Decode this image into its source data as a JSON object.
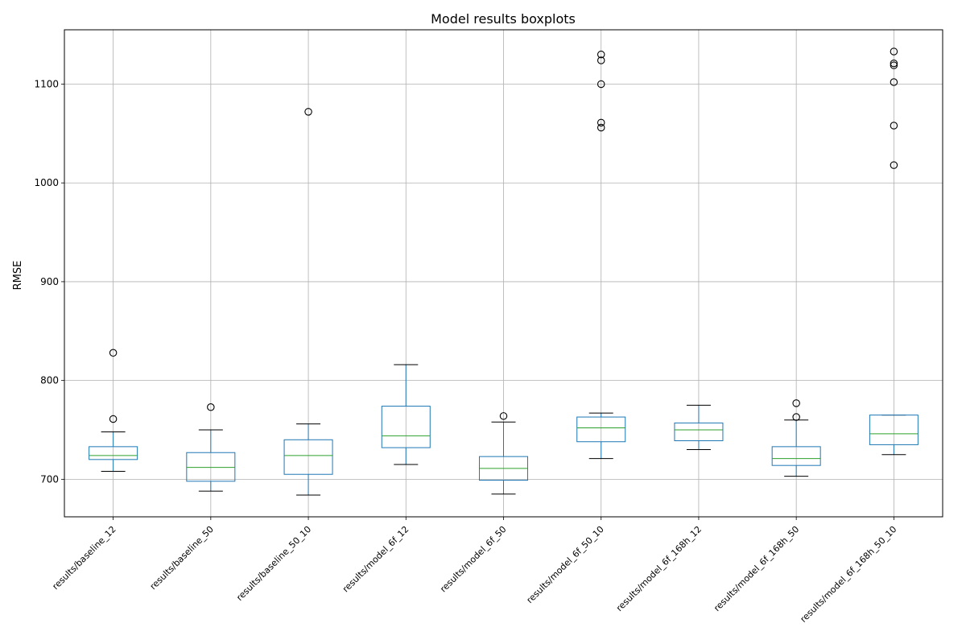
{
  "chart_data": {
    "type": "boxplot",
    "title": "Model results boxplots",
    "ylabel": "RMSE",
    "xlabel": "",
    "ylim": [
      662,
      1155
    ],
    "yticks": [
      700,
      800,
      900,
      1000,
      1100
    ],
    "grid": true,
    "colors": {
      "box": "#1f77b4",
      "median": "#2ca02c",
      "whisker_cap": "#000000",
      "grid": "#b0b0b0",
      "flier": "#000000"
    },
    "categories": [
      "results/baseline_12",
      "results/baseline_50",
      "results/baseline_50_10",
      "results/model_6f_12",
      "results/model_6f_50",
      "results/model_6f_50_10",
      "results/model_6f_168h_12",
      "results/model_6f_168h_50",
      "results/model_6f_168h_50_10"
    ],
    "boxes": [
      {
        "whisker_low": 708,
        "q1": 720,
        "median": 724,
        "q3": 733,
        "whisker_high": 748,
        "fliers": [
          761,
          828
        ]
      },
      {
        "whisker_low": 688,
        "q1": 698,
        "median": 712,
        "q3": 727,
        "whisker_high": 750,
        "fliers": [
          773
        ]
      },
      {
        "whisker_low": 684,
        "q1": 705,
        "median": 724,
        "q3": 740,
        "whisker_high": 756,
        "fliers": [
          1072
        ]
      },
      {
        "whisker_low": 715,
        "q1": 732,
        "median": 744,
        "q3": 774,
        "whisker_high": 816,
        "fliers": []
      },
      {
        "whisker_low": 685,
        "q1": 699,
        "median": 711,
        "q3": 723,
        "whisker_high": 758,
        "fliers": [
          764
        ]
      },
      {
        "whisker_low": 721,
        "q1": 738,
        "median": 752,
        "q3": 763,
        "whisker_high": 767,
        "fliers": [
          1056,
          1061,
          1100,
          1124,
          1130
        ]
      },
      {
        "whisker_low": 730,
        "q1": 739,
        "median": 750,
        "q3": 757,
        "whisker_high": 775,
        "fliers": []
      },
      {
        "whisker_low": 703,
        "q1": 714,
        "median": 721,
        "q3": 733,
        "whisker_high": 760,
        "fliers": [
          763,
          777
        ]
      },
      {
        "whisker_low": 725,
        "q1": 735,
        "median": 746,
        "q3": 765,
        "whisker_high": 765,
        "fliers": [
          1018,
          1058,
          1102,
          1119,
          1121,
          1133
        ]
      }
    ]
  }
}
